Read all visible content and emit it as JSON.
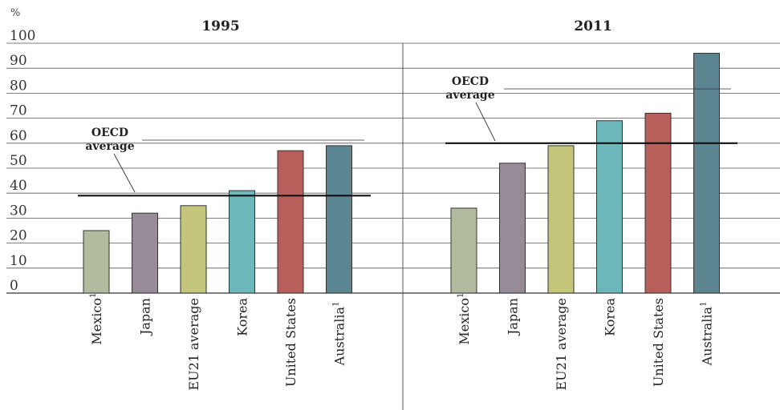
{
  "chart_data": {
    "type": "bar",
    "ylabel": "%",
    "ylim": [
      0,
      100
    ],
    "yticks": [
      0,
      10,
      20,
      30,
      40,
      50,
      60,
      70,
      80,
      90,
      100
    ],
    "grid": true,
    "categories": [
      "Mexico",
      "Japan",
      "EU21 average",
      "Korea",
      "United States",
      "Australia"
    ],
    "category_footnotes": [
      "1",
      "",
      "",
      "",
      "",
      "1"
    ],
    "colors": [
      "#b2bb9e",
      "#968b96",
      "#c3c57a",
      "#6bb7ba",
      "#b85f5c",
      "#5a8591"
    ],
    "reference_label": "OECD average",
    "reference_label_lines": [
      "OECD",
      "average"
    ],
    "panels": [
      {
        "title": "1995",
        "values": [
          25,
          32,
          35,
          41,
          57,
          59
        ],
        "oecd_average": 39
      },
      {
        "title": "2011",
        "values": [
          34,
          52,
          59,
          69,
          72,
          96
        ],
        "oecd_average": 60
      }
    ]
  }
}
